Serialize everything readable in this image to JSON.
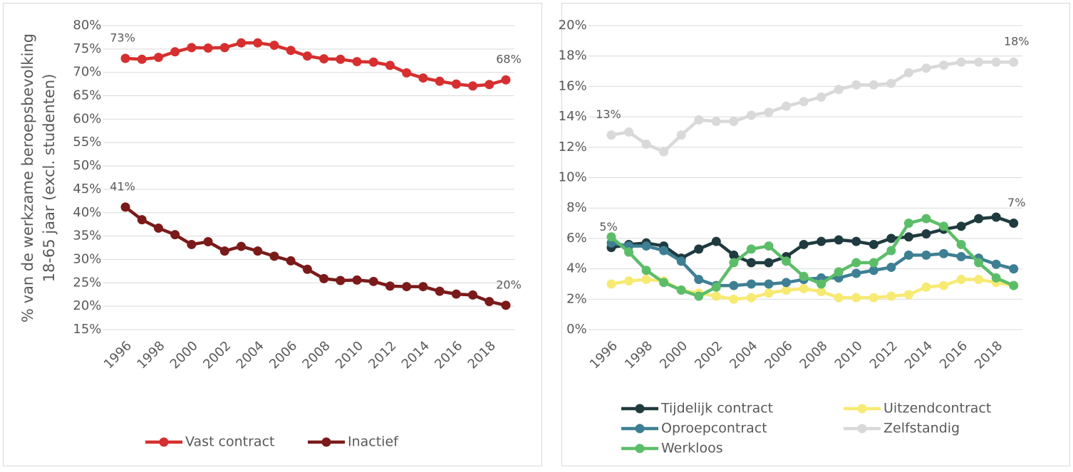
{
  "chart_data": [
    {
      "type": "line",
      "ylabel": [
        "% van de werkzame beroepsbevolking",
        "18-65 jaar (excl. studenten)"
      ],
      "x": [
        1996,
        1997,
        1998,
        1999,
        2000,
        2001,
        2002,
        2003,
        2004,
        2005,
        2006,
        2007,
        2008,
        2009,
        2010,
        2011,
        2012,
        2013,
        2014,
        2015,
        2016,
        2017,
        2018,
        2019
      ],
      "xlim": [
        1995.5,
        2019.5
      ],
      "xticks": [
        1996,
        1998,
        2000,
        2002,
        2004,
        2006,
        2008,
        2010,
        2012,
        2014,
        2016,
        2018
      ],
      "ylim": [
        15,
        80
      ],
      "yticks": [
        {
          "value": 15,
          "label": "15%"
        },
        {
          "value": 20,
          "label": "20%"
        },
        {
          "value": 25,
          "label": "25%"
        },
        {
          "value": 30,
          "label": "30%"
        },
        {
          "value": 35,
          "label": "35%"
        },
        {
          "value": 40,
          "label": "40%"
        },
        {
          "value": 45,
          "label": "45%"
        },
        {
          "value": 50,
          "label": "50%"
        },
        {
          "value": 55,
          "label": "55%"
        },
        {
          "value": 60,
          "label": "60%"
        },
        {
          "value": 65,
          "label": "65%"
        },
        {
          "value": 70,
          "label": "70%"
        },
        {
          "value": 75,
          "label": "75%"
        },
        {
          "value": 80,
          "label": "80%"
        }
      ],
      "grid": true,
      "legend": "bottom",
      "series": [
        {
          "name": "Vast contract",
          "color": "#d62f2f",
          "values": [
            73,
            72.8,
            73.2,
            74.4,
            75.3,
            75.2,
            75.3,
            76.3,
            76.3,
            75.8,
            74.7,
            73.5,
            72.9,
            72.8,
            72.3,
            72.2,
            71.5,
            69.9,
            68.8,
            68.1,
            67.5,
            67.1,
            67.4,
            68.4
          ],
          "value_labels": [
            "73%",
            null,
            null,
            null,
            null,
            null,
            null,
            null,
            null,
            null,
            null,
            null,
            null,
            null,
            null,
            null,
            null,
            null,
            null,
            null,
            null,
            null,
            null,
            "68%"
          ]
        },
        {
          "name": "Inactief",
          "color": "#7b1a1a",
          "values": [
            41.2,
            38.5,
            36.7,
            35.3,
            33.2,
            33.8,
            31.8,
            32.8,
            31.8,
            30.7,
            29.7,
            27.9,
            25.9,
            25.5,
            25.6,
            25.3,
            24.3,
            24.2,
            24.2,
            23.2,
            22.6,
            22.4,
            21.0,
            20.2
          ],
          "value_labels": [
            "41%",
            null,
            null,
            null,
            null,
            null,
            null,
            null,
            null,
            null,
            null,
            null,
            null,
            null,
            null,
            null,
            null,
            null,
            null,
            null,
            null,
            null,
            null,
            "20%"
          ]
        }
      ]
    },
    {
      "type": "line",
      "x": [
        1996,
        1997,
        1998,
        1999,
        2000,
        2001,
        2002,
        2003,
        2004,
        2005,
        2006,
        2007,
        2008,
        2009,
        2010,
        2011,
        2012,
        2013,
        2014,
        2015,
        2016,
        2017,
        2018,
        2019
      ],
      "xlim": [
        1995.5,
        2019.5
      ],
      "xticks": [
        1996,
        1998,
        2000,
        2002,
        2004,
        2006,
        2008,
        2010,
        2012,
        2014,
        2016,
        2018
      ],
      "ylim": [
        0,
        20
      ],
      "yticks": [
        {
          "value": 0,
          "label": "0%"
        },
        {
          "value": 2,
          "label": "2%"
        },
        {
          "value": 4,
          "label": "4%"
        },
        {
          "value": 6,
          "label": "6%"
        },
        {
          "value": 8,
          "label": "8%"
        },
        {
          "value": 10,
          "label": "10%"
        },
        {
          "value": 12,
          "label": "12%"
        },
        {
          "value": 14,
          "label": "14%"
        },
        {
          "value": 16,
          "label": "16%"
        },
        {
          "value": 18,
          "label": "18%"
        },
        {
          "value": 20,
          "label": "20%"
        }
      ],
      "grid": true,
      "legend": "bottom",
      "series": [
        {
          "name": "Tijdelijk contract",
          "color": "#1f3b3f",
          "values": [
            5.4,
            5.6,
            5.7,
            5.5,
            4.7,
            5.3,
            5.8,
            4.9,
            4.4,
            4.4,
            4.8,
            5.6,
            5.8,
            5.9,
            5.8,
            5.6,
            6.0,
            6.1,
            6.3,
            6.6,
            6.8,
            7.3,
            7.4,
            7.0
          ],
          "value_labels": [
            "5%",
            null,
            null,
            null,
            null,
            null,
            null,
            null,
            null,
            null,
            null,
            null,
            null,
            null,
            null,
            null,
            null,
            null,
            null,
            null,
            null,
            null,
            null,
            "7%"
          ]
        },
        {
          "name": "Uitzendcontract",
          "color": "#f7ea72",
          "values": [
            3.0,
            3.2,
            3.3,
            3.2,
            2.6,
            2.4,
            2.2,
            2.0,
            2.1,
            2.4,
            2.6,
            2.7,
            2.5,
            2.1,
            2.1,
            2.1,
            2.2,
            2.3,
            2.8,
            2.9,
            3.3,
            3.3,
            3.1,
            2.9
          ]
        },
        {
          "name": "Oproepcontract",
          "color": "#3e7f93",
          "values": [
            5.7,
            5.5,
            5.5,
            5.2,
            4.5,
            3.3,
            2.9,
            2.9,
            3.0,
            3.0,
            3.1,
            3.3,
            3.4,
            3.4,
            3.7,
            3.9,
            4.1,
            4.9,
            4.9,
            5.0,
            4.8,
            4.7,
            4.3,
            4.0
          ]
        },
        {
          "name": "Zelfstandig",
          "color": "#d9d9d9",
          "values": [
            12.8,
            13.0,
            12.2,
            11.7,
            12.8,
            13.8,
            13.7,
            13.7,
            14.1,
            14.3,
            14.7,
            15.0,
            15.3,
            15.8,
            16.1,
            16.1,
            16.2,
            16.9,
            17.2,
            17.4,
            17.6,
            17.6,
            17.6,
            17.6
          ],
          "value_labels": [
            "13%",
            null,
            null,
            null,
            null,
            null,
            null,
            null,
            null,
            null,
            null,
            null,
            null,
            null,
            null,
            null,
            null,
            null,
            null,
            null,
            null,
            null,
            null,
            "18%"
          ]
        },
        {
          "name": "Werkloos",
          "color": "#5cbd69",
          "values": [
            6.1,
            5.1,
            3.9,
            3.1,
            2.6,
            2.2,
            2.8,
            4.4,
            5.3,
            5.5,
            4.5,
            3.5,
            3.0,
            3.8,
            4.4,
            4.4,
            5.2,
            7.0,
            7.3,
            6.8,
            5.6,
            4.4,
            3.4,
            2.9
          ]
        }
      ]
    }
  ]
}
